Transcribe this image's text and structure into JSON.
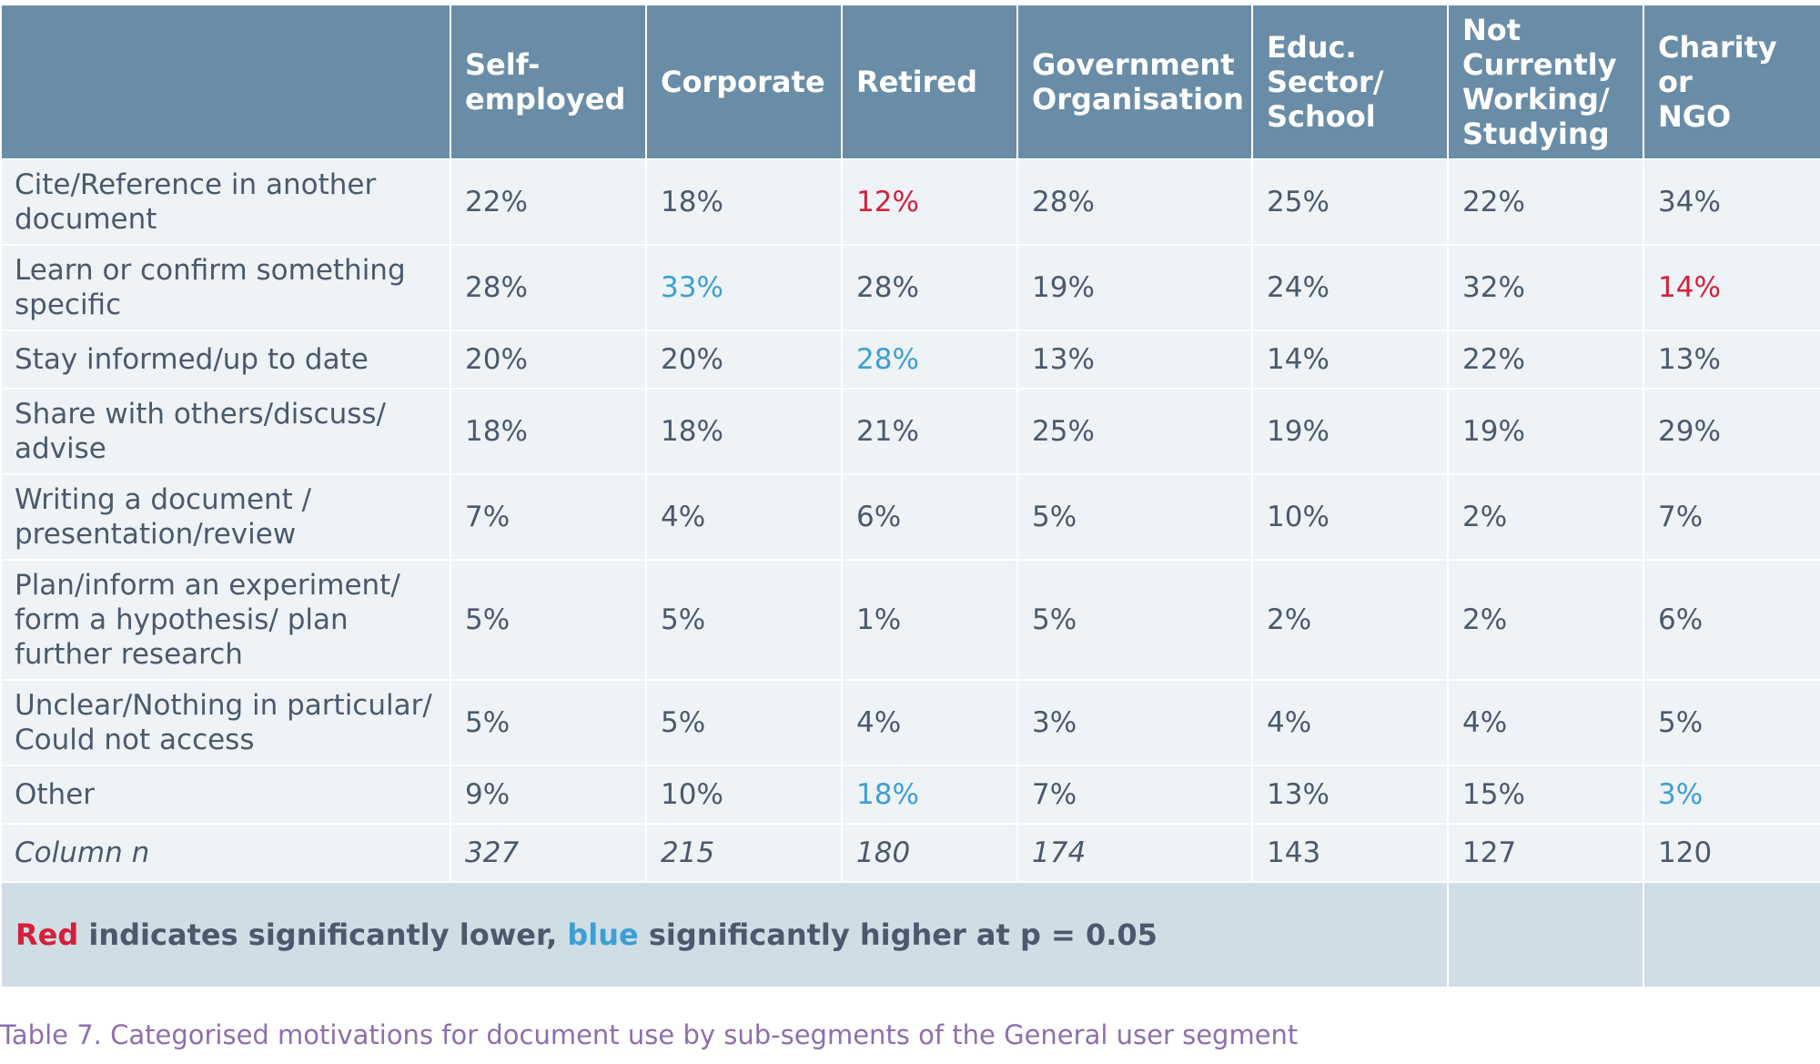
{
  "columns": [
    "",
    "Self-\nemployed",
    "Corporate",
    "Retired",
    "Government\nOrganisation",
    "Educ.\nSector/\nSchool",
    "Not\nCurrently\nWorking/\nStudying",
    "Charity or\nNGO"
  ],
  "rows": [
    {
      "label": "Cite/Reference in another\ndocument",
      "values": [
        "22%",
        "18%",
        "12%",
        "28%",
        "25%",
        "22%",
        "34%"
      ],
      "sig": [
        "",
        "",
        "low",
        "",
        "",
        "",
        ""
      ]
    },
    {
      "label": "Learn or confirm something\nspecific",
      "values": [
        "28%",
        "33%",
        "28%",
        "19%",
        "24%",
        "32%",
        "14%"
      ],
      "sig": [
        "",
        "high",
        "",
        "",
        "",
        "",
        "low"
      ]
    },
    {
      "label": "Stay informed/up to date",
      "values": [
        "20%",
        "20%",
        "28%",
        "13%",
        "14%",
        "22%",
        "13%"
      ],
      "sig": [
        "",
        "",
        "high",
        "",
        "",
        "",
        ""
      ]
    },
    {
      "label": "Share with others/discuss/\nadvise",
      "values": [
        "18%",
        "18%",
        "21%",
        "25%",
        "19%",
        "19%",
        "29%"
      ],
      "sig": [
        "",
        "",
        "",
        "",
        "",
        "",
        ""
      ]
    },
    {
      "label": "Writing a document /\npresentation/review",
      "values": [
        "7%",
        "4%",
        "6%",
        "5%",
        "10%",
        "2%",
        "7%"
      ],
      "sig": [
        "",
        "",
        "",
        "",
        "",
        "",
        ""
      ]
    },
    {
      "label": "Plan/inform an experiment/\nform a hypothesis/ plan\nfurther research",
      "values": [
        "5%",
        "5%",
        "1%",
        "5%",
        "2%",
        "2%",
        "6%"
      ],
      "sig": [
        "",
        "",
        "",
        "",
        "",
        "",
        ""
      ]
    },
    {
      "label": "Unclear/Nothing in particular/\nCould not access",
      "values": [
        "5%",
        "5%",
        "4%",
        "3%",
        "4%",
        "4%",
        "5%"
      ],
      "sig": [
        "",
        "",
        "",
        "",
        "",
        "",
        ""
      ]
    },
    {
      "label": "Other",
      "values": [
        "9%",
        "10%",
        "18%",
        "7%",
        "13%",
        "15%",
        "3%"
      ],
      "sig": [
        "",
        "",
        "high",
        "",
        "",
        "",
        "high"
      ]
    }
  ],
  "column_n": {
    "label": "Column n",
    "values": [
      "327",
      "215",
      "180",
      "174",
      "143",
      "127",
      "120"
    ],
    "italic": [
      true,
      true,
      true,
      true,
      false,
      false,
      false
    ]
  },
  "legend": {
    "red_word": "Red",
    "part1": " indicates significantly lower, ",
    "blue_word": "blue",
    "part2": " significantly higher at p = 0.05"
  },
  "caption": "Table 7. Categorised motivations for document use by sub-segments of the General user segment",
  "colors": {
    "header_bg": "#6a8da7",
    "cell_bg": "#eef3f7",
    "legend_bg": "#cfdde5",
    "text": "#4a5a6c",
    "significantly_lower": "#d61f3a",
    "significantly_higher": "#3d9fd3",
    "caption": "#8d6fae"
  }
}
